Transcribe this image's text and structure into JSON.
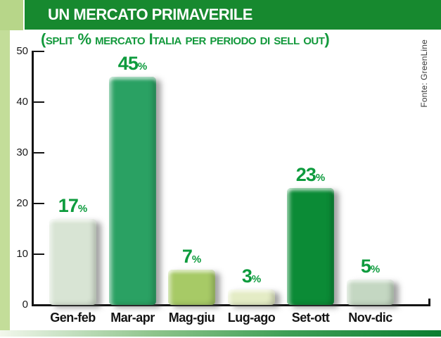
{
  "header": {
    "title": "UN MERCATO PRIMAVERILE"
  },
  "subtitle": "(split % mercato Italia per periodo di sell out)",
  "source": "Fonte: GreenLine",
  "colors": {
    "header_bar": "#17892f",
    "accent_square": "#b7d689",
    "left_strip": "#c3dd99",
    "subtitle_green": "#13993c",
    "value_label_green": "#0d9b3d",
    "axis_black": "#141414",
    "bottom_gradient_start": "#f2f7ec",
    "bottom_gradient_end": "#0b7e31"
  },
  "chart_data": {
    "type": "bar",
    "title": "UN MERCATO PRIMAVERILE",
    "subtitle": "(SPLIT % MERCATO ITALIA PER PERIODO DI SELL OUT)",
    "source": "Fonte: GreenLine",
    "categories": [
      "Gen-feb",
      "Mar-apr",
      "Mag-giu",
      "Lug-ago",
      "Set-ott",
      "Nov-dic"
    ],
    "values": [
      17,
      45,
      7,
      3,
      23,
      5
    ],
    "unit": "%",
    "xlabel": "",
    "ylabel": "",
    "ylim": [
      0,
      50
    ],
    "yticks": [
      0,
      10,
      20,
      30,
      40,
      50
    ],
    "grid": false,
    "legend_position": "none",
    "bar_colors": [
      "#d8e4d4",
      "#2aa163",
      "#a7ca66",
      "#e4ecc5",
      "#0b8b36",
      "#c4d7c2"
    ],
    "value_label_color": "#0d9b3d"
  }
}
